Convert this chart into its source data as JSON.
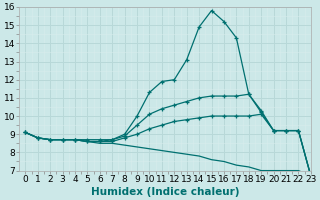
{
  "lines": [
    {
      "x": [
        0,
        1,
        2,
        3,
        4,
        5,
        6,
        7,
        8,
        9,
        10,
        11,
        12,
        13,
        14,
        15,
        16,
        17,
        18,
        19,
        20,
        21,
        22,
        23
      ],
      "y": [
        9.1,
        8.8,
        8.7,
        8.7,
        8.7,
        8.7,
        8.7,
        8.7,
        9.0,
        10.0,
        11.3,
        11.9,
        12.0,
        13.1,
        14.9,
        15.8,
        15.2,
        14.3,
        11.2,
        10.2,
        9.2,
        9.2,
        9.2,
        6.7
      ],
      "marker": "+"
    },
    {
      "x": [
        0,
        1,
        2,
        3,
        4,
        5,
        6,
        7,
        8,
        9,
        10,
        11,
        12,
        13,
        14,
        15,
        16,
        17,
        18,
        19,
        20,
        21,
        22,
        23
      ],
      "y": [
        9.1,
        8.8,
        8.7,
        8.7,
        8.7,
        8.6,
        8.6,
        8.7,
        8.9,
        9.5,
        10.1,
        10.4,
        10.6,
        10.8,
        11.0,
        11.1,
        11.1,
        11.1,
        11.2,
        10.3,
        9.2,
        9.2,
        9.2,
        6.7
      ],
      "marker": "+"
    },
    {
      "x": [
        0,
        1,
        2,
        3,
        4,
        5,
        6,
        7,
        8,
        9,
        10,
        11,
        12,
        13,
        14,
        15,
        16,
        17,
        18,
        19,
        20,
        21,
        22,
        23
      ],
      "y": [
        9.1,
        8.8,
        8.7,
        8.7,
        8.7,
        8.6,
        8.6,
        8.6,
        8.8,
        9.0,
        9.3,
        9.5,
        9.7,
        9.8,
        9.9,
        10.0,
        10.0,
        10.0,
        10.0,
        10.1,
        9.2,
        9.2,
        9.2,
        6.7
      ],
      "marker": "+"
    },
    {
      "x": [
        0,
        1,
        2,
        3,
        4,
        5,
        6,
        7,
        8,
        9,
        10,
        11,
        12,
        13,
        14,
        15,
        16,
        17,
        18,
        19,
        20,
        21,
        22,
        23
      ],
      "y": [
        9.1,
        8.8,
        8.7,
        8.7,
        8.7,
        8.6,
        8.5,
        8.5,
        8.4,
        8.3,
        8.2,
        8.1,
        8.0,
        7.9,
        7.8,
        7.6,
        7.5,
        7.3,
        7.2,
        7.0,
        7.0,
        7.0,
        7.0,
        6.7
      ],
      "marker": null
    }
  ],
  "color": "#007070",
  "bg_color": "#cce8e8",
  "grid_major_color": "#b8d8d8",
  "grid_minor_color": "#d8ecec",
  "xlabel": "Humidex (Indice chaleur)",
  "ylim": [
    7,
    16
  ],
  "xlim": [
    -0.5,
    23
  ],
  "yticks": [
    7,
    8,
    9,
    10,
    11,
    12,
    13,
    14,
    15,
    16
  ],
  "xticks": [
    0,
    1,
    2,
    3,
    4,
    5,
    6,
    7,
    8,
    9,
    10,
    11,
    12,
    13,
    14,
    15,
    16,
    17,
    18,
    19,
    20,
    21,
    22,
    23
  ],
  "tick_font_size": 6.5,
  "xlabel_font_size": 7.5,
  "linewidth": 0.9,
  "marker_size": 3.5,
  "marker_lw": 0.9
}
